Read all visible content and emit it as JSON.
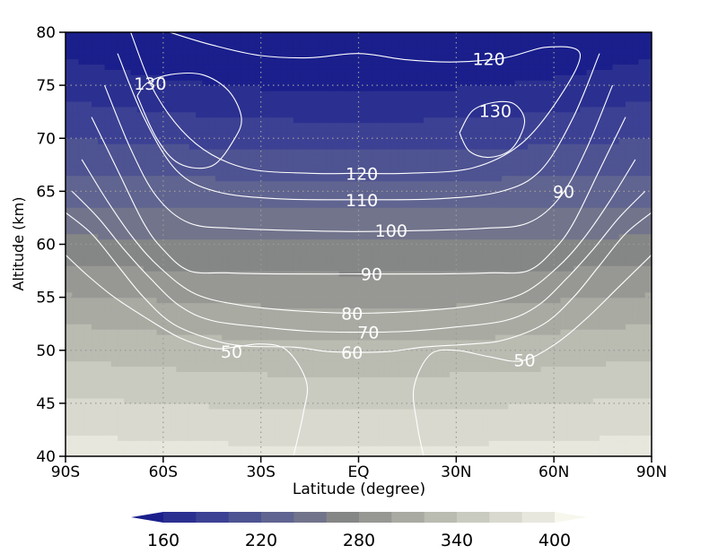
{
  "chart_data": {
    "type": "heatmap",
    "title": "",
    "xlabel": "Latitude (degree)",
    "ylabel": "Altitude (km)",
    "xlim": [
      -90,
      90
    ],
    "ylim": [
      40,
      80
    ],
    "x_ticks": [
      {
        "value": -90,
        "label": "90S"
      },
      {
        "value": -60,
        "label": "60S"
      },
      {
        "value": -30,
        "label": "30S"
      },
      {
        "value": 0,
        "label": "EQ"
      },
      {
        "value": 30,
        "label": "30N"
      },
      {
        "value": 60,
        "label": "60N"
      },
      {
        "value": 90,
        "label": "90N"
      }
    ],
    "y_ticks": [
      {
        "value": 40,
        "label": "40"
      },
      {
        "value": 45,
        "label": "45"
      },
      {
        "value": 50,
        "label": "50"
      },
      {
        "value": 55,
        "label": "55"
      },
      {
        "value": 60,
        "label": "60"
      },
      {
        "value": 65,
        "label": "65"
      },
      {
        "value": 70,
        "label": "70"
      },
      {
        "value": 75,
        "label": "75"
      },
      {
        "value": 80,
        "label": "80"
      }
    ],
    "grid": "dotted",
    "shading": {
      "description_values": "filled field decreasing with altitude, ~400 near 40 km to ~160 near 80 km",
      "levels": [
        150,
        170,
        190,
        210,
        230,
        250,
        270,
        290,
        310,
        330,
        350,
        370,
        390,
        410
      ],
      "colors": [
        "#1a1f8c",
        "#2b3090",
        "#3c4194",
        "#4e5392",
        "#606490",
        "#72748c",
        "#858686",
        "#979894",
        "#a9aaa2",
        "#babbb1",
        "#cacbc0",
        "#d9d9cf",
        "#e7e7de"
      ],
      "ygrid": [
        40,
        42.5,
        45,
        47.5,
        50,
        52.5,
        55,
        57.5,
        60,
        62.5,
        65,
        67.5,
        70,
        72.5,
        75,
        77.5,
        80
      ],
      "profile": [
        400,
        388,
        374,
        360,
        345,
        330,
        312,
        294,
        276,
        258,
        240,
        224,
        210,
        196,
        182,
        170,
        160
      ],
      "lat_mod": [
        0.5,
        0.8,
        1.0,
        1.2,
        1.3,
        1.2,
        1.0,
        0.7,
        0.5,
        0.3,
        0.2,
        0.5,
        1.0,
        1.5,
        2.0,
        2.5,
        3.0
      ]
    },
    "colorbar": {
      "tick_labels": [
        "160",
        "220",
        "280",
        "340",
        "400"
      ],
      "tick_values": [
        160,
        220,
        280,
        340,
        400
      ],
      "extend": "both"
    },
    "contours": {
      "color": "#ffffff",
      "labels": [
        {
          "text": "130",
          "x": -64,
          "y": 75.2
        },
        {
          "text": "120",
          "x": 40,
          "y": 77.5
        },
        {
          "text": "130",
          "x": 42,
          "y": 72.6
        },
        {
          "text": "120",
          "x": 1,
          "y": 66.7
        },
        {
          "text": "110",
          "x": 1,
          "y": 64.2
        },
        {
          "text": "90",
          "x": 63,
          "y": 65.0
        },
        {
          "text": "100",
          "x": 10,
          "y": 61.3
        },
        {
          "text": "90",
          "x": 4,
          "y": 57.2
        },
        {
          "text": "80",
          "x": -2,
          "y": 53.5
        },
        {
          "text": "70",
          "x": 3,
          "y": 51.7
        },
        {
          "text": "60",
          "x": -2,
          "y": 49.8
        },
        {
          "text": "50",
          "x": -39,
          "y": 49.9
        },
        {
          "text": "50",
          "x": 51,
          "y": 49.1
        }
      ],
      "lines": [
        {
          "level": 50,
          "points": [
            [
              -90,
              59
            ],
            [
              -83,
              57
            ],
            [
              -75,
              55
            ],
            [
              -65,
              53
            ],
            [
              -55,
              51.2
            ],
            [
              -45,
              50.2
            ],
            [
              -38,
              50.3
            ],
            [
              -30,
              50.6
            ],
            [
              -22,
              50
            ],
            [
              -16,
              47
            ],
            [
              -17,
              44
            ],
            [
              -20,
              40
            ]
          ]
        },
        {
          "level": 50,
          "points": [
            [
              20,
              40
            ],
            [
              18,
              43
            ],
            [
              17,
              46.5
            ],
            [
              22,
              49.6
            ],
            [
              30,
              50
            ],
            [
              40,
              49.4
            ],
            [
              50,
              49
            ],
            [
              60,
              50.5
            ],
            [
              70,
              53
            ],
            [
              80,
              56
            ],
            [
              90,
              59
            ]
          ]
        },
        {
          "level": 60,
          "points": [
            [
              -90,
              63
            ],
            [
              -82,
              61
            ],
            [
              -74,
              58
            ],
            [
              -66,
              55
            ],
            [
              -57,
              52.5
            ],
            [
              -45,
              51
            ],
            [
              -35,
              50.4
            ],
            [
              -20,
              50.3
            ],
            [
              -10,
              49.9
            ],
            [
              0,
              49.8
            ],
            [
              10,
              49.9
            ],
            [
              20,
              50.3
            ],
            [
              35,
              50.6
            ],
            [
              45,
              51
            ],
            [
              57,
              52.5
            ],
            [
              66,
              55
            ],
            [
              74,
              58
            ],
            [
              82,
              61
            ],
            [
              90,
              63
            ]
          ]
        },
        {
          "level": 70,
          "points": [
            [
              -88,
              65
            ],
            [
              -80,
              62.5
            ],
            [
              -72,
              59.5
            ],
            [
              -64,
              56.8
            ],
            [
              -55,
              54.2
            ],
            [
              -45,
              52.8
            ],
            [
              -30,
              52.2
            ],
            [
              -15,
              51.8
            ],
            [
              0,
              51.7
            ],
            [
              15,
              51.8
            ],
            [
              30,
              52.2
            ],
            [
              45,
              52.8
            ],
            [
              55,
              54.2
            ],
            [
              64,
              56.8
            ],
            [
              72,
              59.5
            ],
            [
              80,
              62.5
            ],
            [
              88,
              65
            ]
          ]
        },
        {
          "level": 80,
          "points": [
            [
              -85,
              68
            ],
            [
              -77,
              64
            ],
            [
              -69,
              60.5
            ],
            [
              -61,
              57.8
            ],
            [
              -50,
              55.3
            ],
            [
              -35,
              54.2
            ],
            [
              -18,
              53.7
            ],
            [
              0,
              53.5
            ],
            [
              18,
              53.7
            ],
            [
              35,
              54.2
            ],
            [
              50,
              55.3
            ],
            [
              61,
              57.8
            ],
            [
              69,
              60.5
            ],
            [
              77,
              64
            ],
            [
              85,
              68
            ]
          ]
        },
        {
          "level": 90,
          "points": [
            [
              -82,
              72
            ],
            [
              -74,
              67
            ],
            [
              -66,
              62
            ],
            [
              -60,
              59.5
            ],
            [
              -52,
              57.5
            ],
            [
              -40,
              57.3
            ],
            [
              -25,
              57.2
            ],
            [
              0,
              57.2
            ],
            [
              25,
              57.2
            ],
            [
              40,
              57.3
            ],
            [
              52,
              57.5
            ],
            [
              60,
              59.5
            ],
            [
              66,
              62
            ],
            [
              74,
              67
            ],
            [
              82,
              72
            ]
          ]
        },
        {
          "level": 100,
          "points": [
            [
              -78,
              75
            ],
            [
              -70,
              69
            ],
            [
              -62,
              64.5
            ],
            [
              -52,
              62
            ],
            [
              -38,
              61.5
            ],
            [
              -20,
              61.3
            ],
            [
              0,
              61.2
            ],
            [
              20,
              61.3
            ],
            [
              38,
              61.5
            ],
            [
              52,
              62
            ],
            [
              62,
              64.5
            ],
            [
              70,
              69
            ],
            [
              78,
              75
            ]
          ]
        },
        {
          "level": 110,
          "points": [
            [
              -74,
              78
            ],
            [
              -66,
              72
            ],
            [
              -56,
              67
            ],
            [
              -44,
              65
            ],
            [
              -25,
              64.3
            ],
            [
              0,
              64.2
            ],
            [
              25,
              64.3
            ],
            [
              44,
              65
            ],
            [
              56,
              67
            ],
            [
              66,
              72
            ],
            [
              74,
              78
            ]
          ]
        },
        {
          "level": 120,
          "points": [
            [
              -70,
              80
            ],
            [
              -62,
              74
            ],
            [
              -50,
              69.5
            ],
            [
              -35,
              67.2
            ],
            [
              -15,
              66.7
            ],
            [
              0,
              66.7
            ],
            [
              15,
              66.7
            ],
            [
              35,
              67.2
            ],
            [
              50,
              69.5
            ],
            [
              62,
              74
            ],
            [
              68,
              78
            ],
            [
              58,
              78.6
            ],
            [
              45,
              77.6
            ],
            [
              30,
              77.2
            ],
            [
              15,
              77.4
            ],
            [
              0,
              78
            ],
            [
              -15,
              77.6
            ],
            [
              -30,
              77.8
            ],
            [
              -45,
              78.8
            ],
            [
              -58,
              80
            ]
          ]
        },
        {
          "level": 130,
          "points": [
            [
              -68,
              74
            ],
            [
              -62,
              70
            ],
            [
              -55,
              67.6
            ],
            [
              -45,
              67.4
            ],
            [
              -38,
              70
            ],
            [
              -36,
              72
            ],
            [
              -40,
              74.5
            ],
            [
              -48,
              76
            ],
            [
              -58,
              76
            ],
            [
              -65,
              75.2
            ],
            [
              -68,
              74
            ]
          ]
        },
        {
          "level": 130,
          "points": [
            [
              31,
              70.5
            ],
            [
              34,
              68.8
            ],
            [
              40,
              68.2
            ],
            [
              47,
              69
            ],
            [
              51,
              71.5
            ],
            [
              48,
              73.2
            ],
            [
              42,
              73.4
            ],
            [
              35,
              72.6
            ],
            [
              31,
              70.5
            ]
          ]
        }
      ]
    }
  }
}
